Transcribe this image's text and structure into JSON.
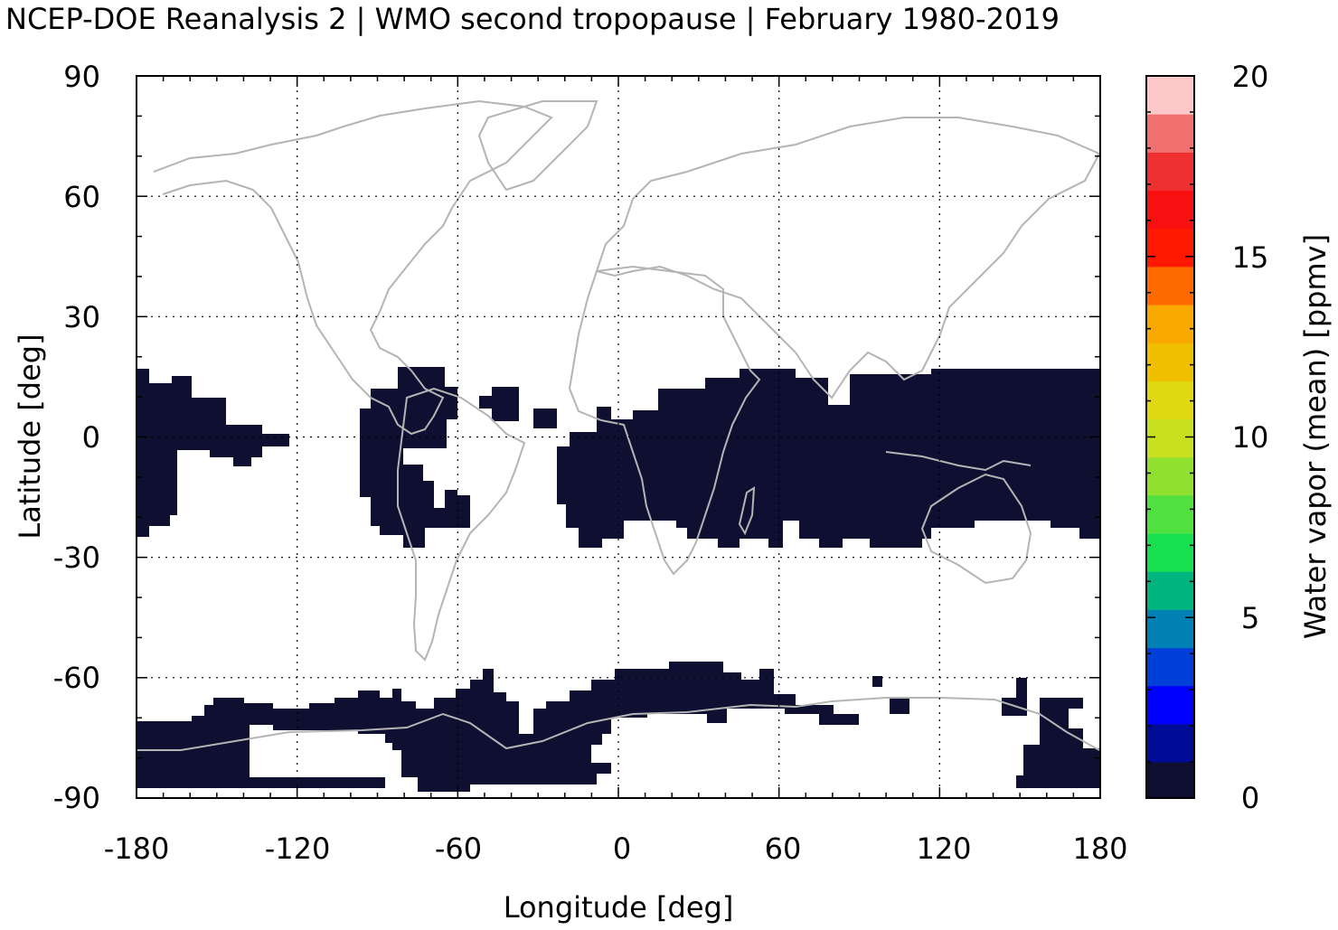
{
  "title": "NCEP-DOE Reanalysis 2 | WMO second tropopause | February 1980-2019",
  "map": {
    "x_axis_label": "Longitude [deg]",
    "y_axis_label": "Latitude [deg]",
    "x_ticks": [
      "-180",
      "-120",
      "-60",
      "0",
      "60",
      "120",
      "180"
    ],
    "y_ticks": [
      "90",
      "60",
      "30",
      "0",
      "-30",
      "-60",
      "-90"
    ],
    "grid": true,
    "coastline_color": "#b4b4b4",
    "data_fill_color": "#0f0f32"
  },
  "colorbar": {
    "label": "Water vapor (mean) [ppmv]",
    "ticks": [
      "20",
      "15",
      "10",
      "5",
      "0"
    ],
    "range": [
      0,
      20
    ],
    "colors_bottom_to_top": [
      "#0f0f32",
      "#000c96",
      "#0000ff",
      "#0040d8",
      "#0080b4",
      "#00b480",
      "#16e050",
      "#50e040",
      "#90e030",
      "#c8e020",
      "#e0d810",
      "#f0c000",
      "#f8a800",
      "#ff6a00",
      "#ff1800",
      "#f81010",
      "#ee3030",
      "#f07070",
      "#ffc8c8"
    ]
  }
}
